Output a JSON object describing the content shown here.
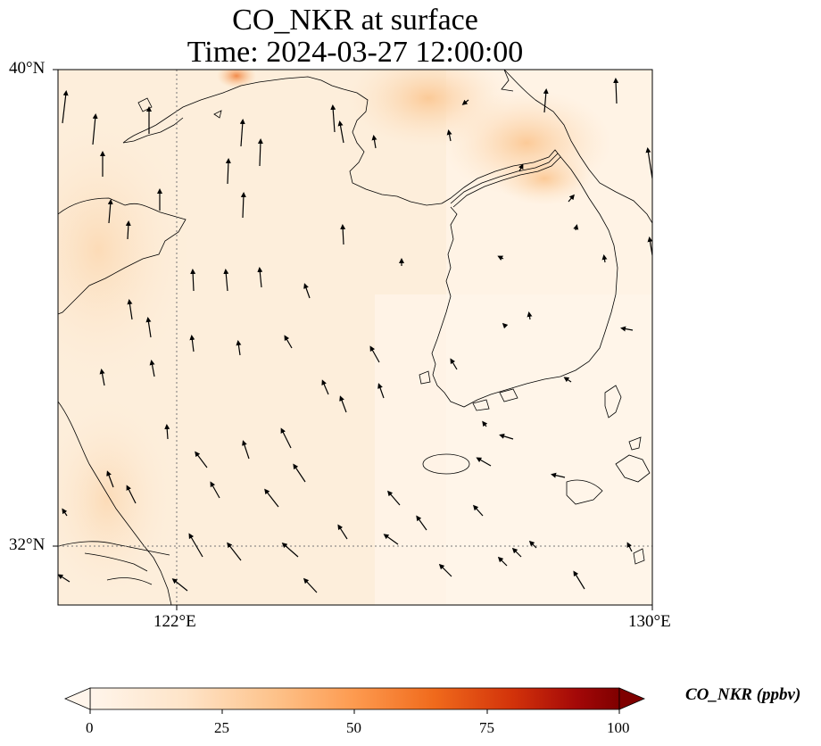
{
  "title": {
    "line1": "CO_NKR at surface",
    "line2": "Time: 2024-03-27 12:00:00"
  },
  "map": {
    "extent": {
      "lon_min": 120,
      "lon_max": 130,
      "lat_min": 31,
      "lat_max": 40
    },
    "lat_labels": [
      "40°N",
      "32°N"
    ],
    "lon_labels": [
      "122°E",
      "130°E"
    ],
    "gridlines": {
      "lons": [
        122
      ],
      "lats": [
        32
      ],
      "style": "dotted"
    },
    "field_color": "#fdeedb",
    "coastline_color": "#000000"
  },
  "colorbar": {
    "label": "CO_NKR (ppbv)",
    "ticks": [
      "0",
      "25",
      "50",
      "75",
      "100"
    ],
    "vmin": 0,
    "vmax": 100,
    "colors": [
      "#fff5eb",
      "#fdd9b4",
      "#fdb97d",
      "#fd8c3b",
      "#e95e0d",
      "#c41a0c",
      "#8c0000",
      "#7f0000"
    ],
    "extend": "both"
  }
}
